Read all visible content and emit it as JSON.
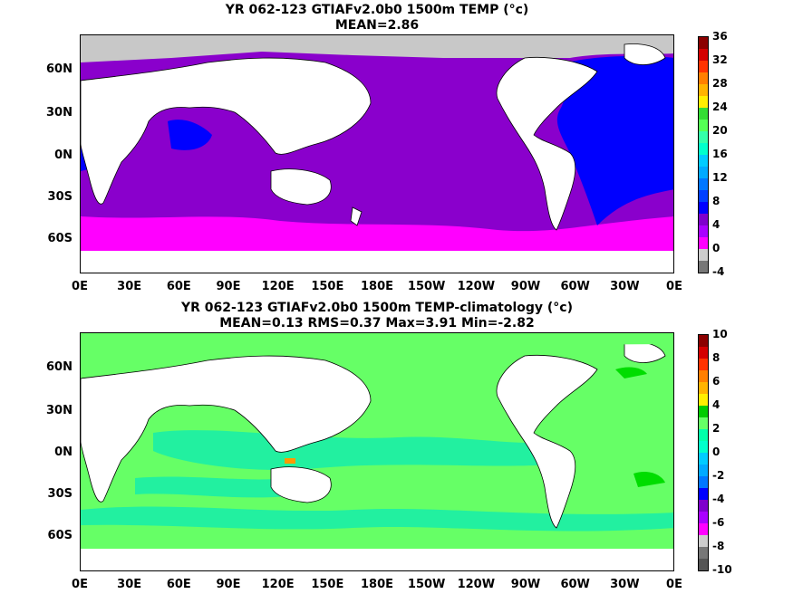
{
  "panel1": {
    "title_line1": "YR 062-123 GTIAFv2.0b0 1500m TEMP (°c)",
    "title_line2": "MEAN=2.86",
    "colorbar_labels": [
      "36",
      "32",
      "28",
      "24",
      "20",
      "16",
      "12",
      "8",
      "4",
      "0",
      "-4"
    ],
    "colorbar_colors": [
      "#8b0000",
      "#d40000",
      "#ff3300",
      "#ff7f00",
      "#ffb300",
      "#ffee00",
      "#33dd33",
      "#55ff55",
      "#33ffaa",
      "#00ffcc",
      "#00ccff",
      "#00aaff",
      "#0077ff",
      "#0040ff",
      "#0000ff",
      "#7f00cc",
      "#aa00ff",
      "#ff00ff",
      "#cccccc",
      "#777777"
    ]
  },
  "panel2": {
    "title_line1": "YR 062-123 GTIAFv2.0b0 1500m TEMP-climatology (°c)",
    "title_line2": "MEAN=0.13   RMS=0.37   Max=3.91   Min=-2.82",
    "colorbar_labels": [
      "10",
      "8",
      "6",
      "4",
      "2",
      "0",
      "-2",
      "-4",
      "-6",
      "-8",
      "-10"
    ],
    "colorbar_colors": [
      "#8b0000",
      "#d40000",
      "#ff3300",
      "#ff7f00",
      "#ffb300",
      "#ffee00",
      "#00cc00",
      "#66ff66",
      "#00ffaa",
      "#00ffcc",
      "#00ccff",
      "#00aaff",
      "#0077ff",
      "#0000ff",
      "#7f00cc",
      "#aa00ff",
      "#ff00ff",
      "#cccccc",
      "#777777",
      "#555555"
    ]
  },
  "lat_labels": [
    "60N",
    "30N",
    "0N",
    "30S",
    "60S"
  ],
  "lon_labels": [
    "0E",
    "30E",
    "60E",
    "90E",
    "120E",
    "150E",
    "180E",
    "150W",
    "120W",
    "90W",
    "60W",
    "30W",
    "0E"
  ],
  "colors": {
    "land": "#ffffff",
    "ice": "#c8c8c8",
    "violet": "#8a00cc",
    "magenta": "#ff00ff",
    "blue": "#0000ff",
    "cyan": "#00ffff",
    "lightgreen": "#66ff66",
    "aqua": "#22f0a0",
    "green": "#00dd00",
    "orange": "#ff9900"
  }
}
